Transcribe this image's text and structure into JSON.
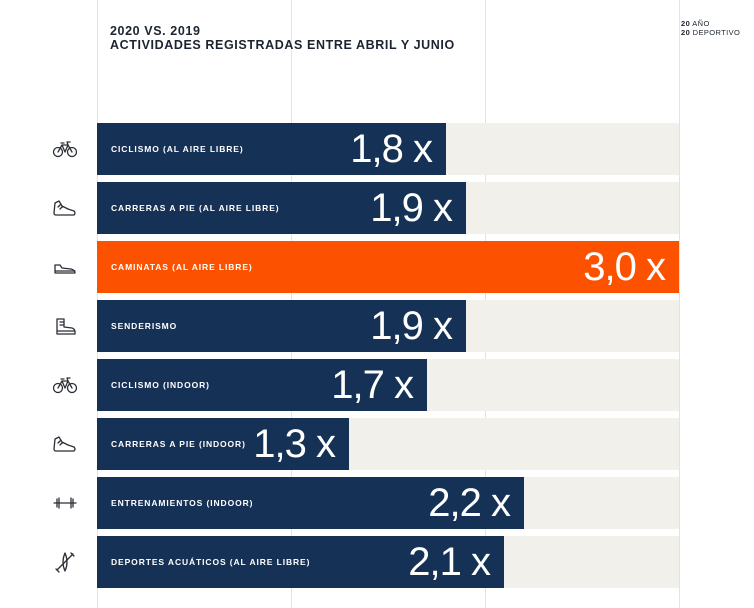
{
  "title": {
    "line1": "2020 VS. 2019",
    "line2": "ACTIVIDADES REGISTRADAS ENTRE ABRIL Y JUNIO"
  },
  "brand": {
    "num1": "20",
    "word1": "AÑO",
    "num2": "20",
    "word2": "DEPORTIVO"
  },
  "colors": {
    "bar": "#153155",
    "highlight": "#fc5200",
    "track": "#f1f0ea"
  },
  "chart_data": {
    "type": "bar",
    "orientation": "horizontal",
    "xlim": [
      0,
      3.0
    ],
    "grid": true,
    "categories": [
      "CICLISMO (AL AIRE LIBRE)",
      "CARRERAS A PIE (AL AIRE LIBRE)",
      "CAMINATAS (AL AIRE LIBRE)",
      "SENDERISMO",
      "CICLISMO (INDOOR)",
      "CARRERAS A PIE (INDOOR)",
      "ENTRENAMIENTOS (INDOOR)",
      "DEPORTES ACUÁTICOS (AL AIRE LIBRE)"
    ],
    "values": [
      1.8,
      1.9,
      3.0,
      1.9,
      1.7,
      1.3,
      2.2,
      2.1
    ],
    "value_labels": [
      "1,8 x",
      "1,9 x",
      "3,0 x",
      "1,9 x",
      "1,7 x",
      "1,3 x",
      "2,2 x",
      "2,1 x"
    ],
    "icons": [
      "bicycle-icon",
      "running-shoe-icon",
      "walking-shoe-icon",
      "hiking-boot-icon",
      "bicycle-icon",
      "running-shoe-icon",
      "dumbbell-icon",
      "kayak-icon"
    ],
    "highlight_index": 2
  }
}
